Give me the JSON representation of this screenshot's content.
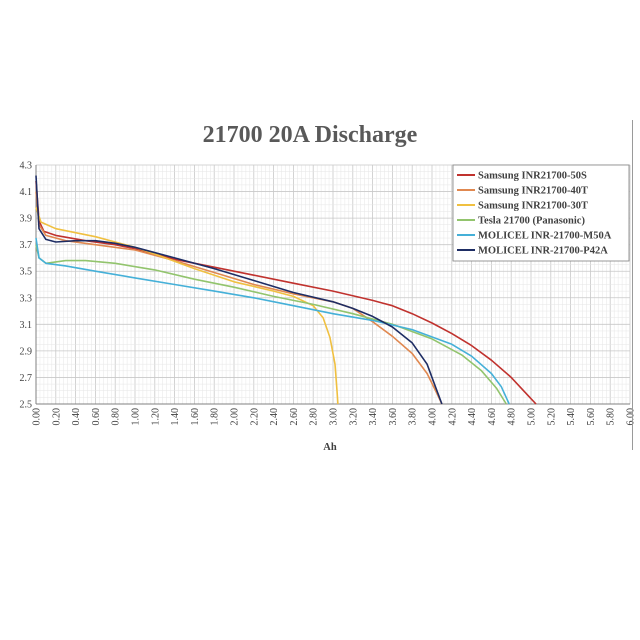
{
  "chart_data": {
    "type": "line",
    "title": "21700 20A Discharge",
    "xlabel": "Ah",
    "ylabel": "",
    "xlim": [
      0,
      6.0
    ],
    "ylim": [
      2.5,
      4.3
    ],
    "grid": true,
    "legend_position": "top-right",
    "x_ticks": [
      "0.00",
      "0.20",
      "0.40",
      "0.60",
      "0.80",
      "1.00",
      "1.20",
      "1.40",
      "1.60",
      "1.80",
      "2.00",
      "2.20",
      "2.40",
      "2.60",
      "2.80",
      "3.00",
      "3.20",
      "3.40",
      "3.60",
      "3.80",
      "4.00",
      "4.20",
      "4.40",
      "4.60",
      "4.80",
      "5.00",
      "5.20",
      "5.40",
      "5.60",
      "5.80",
      "6.00"
    ],
    "y_ticks": [
      "2.5",
      "2.7",
      "2.9",
      "3.1",
      "3.3",
      "3.5",
      "3.7",
      "3.9",
      "4.1",
      "4.3"
    ],
    "series": [
      {
        "name": "Samsung INR21700-50S",
        "color": "#c0322e",
        "points": [
          [
            0,
            4.18
          ],
          [
            0.03,
            3.88
          ],
          [
            0.08,
            3.8
          ],
          [
            0.2,
            3.77
          ],
          [
            0.5,
            3.73
          ],
          [
            0.8,
            3.7
          ],
          [
            1.0,
            3.67
          ],
          [
            1.4,
            3.59
          ],
          [
            1.8,
            3.53
          ],
          [
            2.2,
            3.47
          ],
          [
            2.6,
            3.41
          ],
          [
            3.0,
            3.35
          ],
          [
            3.4,
            3.28
          ],
          [
            3.6,
            3.24
          ],
          [
            3.8,
            3.18
          ],
          [
            4.0,
            3.11
          ],
          [
            4.2,
            3.03
          ],
          [
            4.4,
            2.94
          ],
          [
            4.6,
            2.83
          ],
          [
            4.8,
            2.7
          ],
          [
            4.9,
            2.62
          ],
          [
            5.0,
            2.54
          ],
          [
            5.05,
            2.5
          ]
        ]
      },
      {
        "name": "Samsung INR21700-40T",
        "color": "#e08850",
        "points": [
          [
            0,
            4.1
          ],
          [
            0.03,
            3.85
          ],
          [
            0.1,
            3.77
          ],
          [
            0.3,
            3.73
          ],
          [
            0.6,
            3.7
          ],
          [
            1.0,
            3.66
          ],
          [
            1.4,
            3.58
          ],
          [
            1.8,
            3.49
          ],
          [
            2.2,
            3.4
          ],
          [
            2.6,
            3.33
          ],
          [
            3.0,
            3.27
          ],
          [
            3.2,
            3.22
          ],
          [
            3.4,
            3.12
          ],
          [
            3.6,
            3.01
          ],
          [
            3.8,
            2.88
          ],
          [
            3.95,
            2.73
          ],
          [
            4.05,
            2.58
          ],
          [
            4.1,
            2.5
          ]
        ]
      },
      {
        "name": "Samsung INR21700-30T",
        "color": "#f0c040",
        "points": [
          [
            0,
            3.98
          ],
          [
            0.05,
            3.87
          ],
          [
            0.2,
            3.82
          ],
          [
            0.4,
            3.79
          ],
          [
            0.6,
            3.76
          ],
          [
            0.8,
            3.72
          ],
          [
            1.0,
            3.68
          ],
          [
            1.2,
            3.63
          ],
          [
            1.6,
            3.52
          ],
          [
            2.0,
            3.42
          ],
          [
            2.4,
            3.35
          ],
          [
            2.6,
            3.31
          ],
          [
            2.8,
            3.24
          ],
          [
            2.9,
            3.15
          ],
          [
            2.97,
            3.0
          ],
          [
            3.02,
            2.8
          ],
          [
            3.04,
            2.6
          ],
          [
            3.05,
            2.5
          ]
        ]
      },
      {
        "name": "Tesla 21700 (Panasonic)",
        "color": "#92c46d",
        "points": [
          [
            0,
            3.7
          ],
          [
            0.03,
            3.6
          ],
          [
            0.1,
            3.56
          ],
          [
            0.3,
            3.58
          ],
          [
            0.5,
            3.58
          ],
          [
            0.8,
            3.56
          ],
          [
            1.2,
            3.51
          ],
          [
            1.6,
            3.44
          ],
          [
            2.0,
            3.38
          ],
          [
            2.4,
            3.31
          ],
          [
            2.8,
            3.25
          ],
          [
            3.2,
            3.18
          ],
          [
            3.6,
            3.1
          ],
          [
            4.0,
            2.99
          ],
          [
            4.3,
            2.87
          ],
          [
            4.5,
            2.75
          ],
          [
            4.65,
            2.62
          ],
          [
            4.75,
            2.5
          ]
        ]
      },
      {
        "name": "MOLICEL INR-21700-M50A",
        "color": "#45b0d8",
        "points": [
          [
            0,
            3.75
          ],
          [
            0.03,
            3.6
          ],
          [
            0.1,
            3.56
          ],
          [
            0.3,
            3.54
          ],
          [
            0.6,
            3.5
          ],
          [
            1.0,
            3.45
          ],
          [
            1.4,
            3.4
          ],
          [
            1.8,
            3.35
          ],
          [
            2.2,
            3.3
          ],
          [
            2.6,
            3.24
          ],
          [
            3.0,
            3.18
          ],
          [
            3.4,
            3.13
          ],
          [
            3.8,
            3.06
          ],
          [
            4.2,
            2.95
          ],
          [
            4.4,
            2.86
          ],
          [
            4.6,
            2.73
          ],
          [
            4.7,
            2.63
          ],
          [
            4.78,
            2.5
          ]
        ]
      },
      {
        "name": "MOLICEL INR-21700-P42A",
        "color": "#1e2d64",
        "points": [
          [
            0,
            4.22
          ],
          [
            0.03,
            3.82
          ],
          [
            0.1,
            3.74
          ],
          [
            0.2,
            3.72
          ],
          [
            0.4,
            3.73
          ],
          [
            0.6,
            3.73
          ],
          [
            0.8,
            3.71
          ],
          [
            1.0,
            3.68
          ],
          [
            1.4,
            3.6
          ],
          [
            1.8,
            3.52
          ],
          [
            2.2,
            3.43
          ],
          [
            2.6,
            3.34
          ],
          [
            3.0,
            3.27
          ],
          [
            3.2,
            3.22
          ],
          [
            3.4,
            3.16
          ],
          [
            3.6,
            3.08
          ],
          [
            3.8,
            2.96
          ],
          [
            3.95,
            2.8
          ],
          [
            4.05,
            2.6
          ],
          [
            4.1,
            2.5
          ]
        ]
      }
    ]
  }
}
